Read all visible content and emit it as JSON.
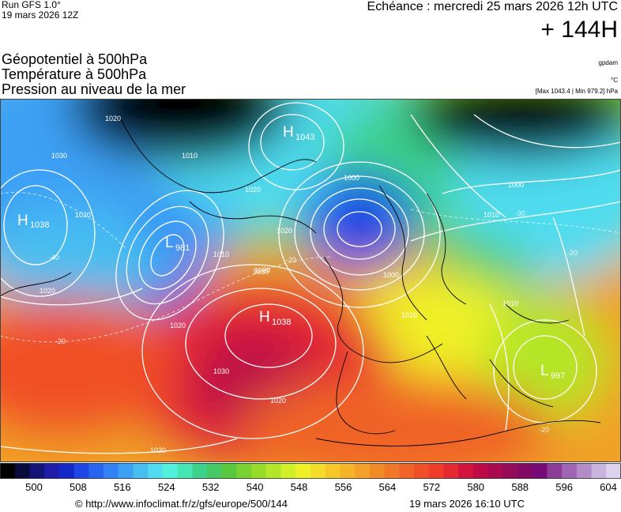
{
  "header": {
    "run": "Run GFS 1.0°",
    "run_init": "19 mars 2026 12Z",
    "echeance": "Echéance : mercredi 25 mars 2026 12h UTC",
    "offset": "+ 144H"
  },
  "params": [
    "Géopotentiel à 500hPa",
    "Température à 500hPa",
    "Pression au niveau de la mer"
  ],
  "units": {
    "geopotential": "gpdam",
    "temperature": "°C",
    "pressure_range": "[Max 1043.4 | Min 979.2] hPa"
  },
  "map": {
    "pressure_centers": [
      {
        "type": "H",
        "value": "1043"
      },
      {
        "type": "H",
        "value": "1038"
      },
      {
        "type": "L",
        "value": "981"
      },
      {
        "type": "H",
        "value": "1038"
      },
      {
        "type": "L",
        "value": "997"
      }
    ],
    "isobar_labels": [
      "1020",
      "1030",
      "1010",
      "1020",
      "1020",
      "1020",
      "1030",
      "1020",
      "1010",
      "1000",
      "1000",
      "1000",
      "1010",
      "1010",
      "1020",
      "1030",
      "1030",
      "1020",
      "1010",
      "1020"
    ],
    "temperature_labels": [
      "-40",
      "-30",
      "-20",
      "-20",
      "-20",
      "-20"
    ]
  },
  "colorbar": {
    "ticks": [
      "500",
      "508",
      "516",
      "524",
      "532",
      "540",
      "548",
      "556",
      "564",
      "572",
      "580",
      "588",
      "596",
      "604"
    ],
    "colors": [
      "#000000",
      "#0a0a3c",
      "#141478",
      "#1e1eaa",
      "#1428c8",
      "#1e46e6",
      "#2864f0",
      "#3282f5",
      "#3ca0f5",
      "#46bef0",
      "#50dcf0",
      "#50f0dc",
      "#46e6b4",
      "#3cd28c",
      "#46c864",
      "#5ac83c",
      "#78d232",
      "#96dc28",
      "#b4e628",
      "#d2f028",
      "#f0f028",
      "#f5dc28",
      "#f5c828",
      "#f5b428",
      "#f5a028",
      "#f08c28",
      "#f07828",
      "#f06428",
      "#f05028",
      "#f03c28",
      "#e62832",
      "#d2143c",
      "#be0a46",
      "#aa0a50",
      "#960a5a",
      "#820a64",
      "#780a78",
      "#8c3c96",
      "#a064b4",
      "#b48cc8",
      "#c8b4dc",
      "#dcd2ec"
    ]
  },
  "footer": {
    "copyright": "© http://www.infoclimat.fr/z/gfs/europe/500/144",
    "generated": "19 mars 2026 16:10 UTC"
  }
}
